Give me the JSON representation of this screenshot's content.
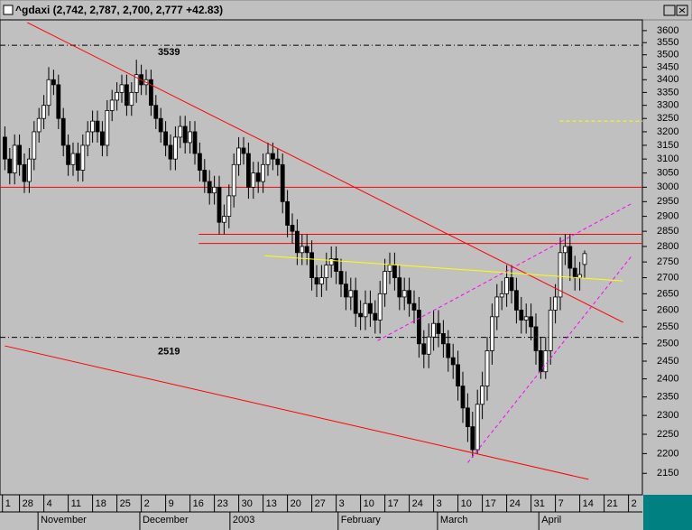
{
  "chart_data": {
    "type": "candlestick",
    "title": "^gdaxi (2,742, 2,787, 2,700, 2,777 +42.83)",
    "log_scale": true,
    "up_color": "#ffffff",
    "down_color": "#000000",
    "open": [
      3180,
      3100,
      3050,
      3150,
      3080,
      3020,
      3100,
      3200,
      3250,
      3300,
      3400,
      3380,
      3250,
      3150,
      3080,
      3120,
      3060,
      3150,
      3200,
      3240,
      3200,
      3150,
      3280,
      3320,
      3350,
      3380,
      3300,
      3350,
      3420,
      3380,
      3400,
      3300,
      3250,
      3200,
      3150,
      3100,
      3180,
      3220,
      3160,
      3200,
      3120,
      3060,
      3020,
      2980,
      3000,
      2880,
      2900,
      2970,
      3080,
      3140,
      3120,
      3000,
      3050,
      3020,
      3080,
      3120,
      3100,
      3080,
      2950,
      2870,
      2850,
      2780,
      2800,
      2780,
      2700,
      2680,
      2700,
      2740,
      2760,
      2720,
      2680,
      2640,
      2660,
      2590,
      2580,
      2620,
      2590,
      2570,
      2650,
      2720,
      2740,
      2700,
      2640,
      2660,
      2620,
      2600,
      2500,
      2470,
      2520,
      2560,
      2530,
      2500,
      2460,
      2440,
      2380,
      2320,
      2270,
      2210,
      2330,
      2380,
      2480,
      2580,
      2640,
      2650,
      2700,
      2660,
      2600,
      2570,
      2580,
      2550,
      2480,
      2420,
      2480,
      2600,
      2640,
      2780,
      2800,
      2730,
      2700,
      2742
    ],
    "high": [
      3220,
      3140,
      3190,
      3190,
      3120,
      3140,
      3240,
      3290,
      3340,
      3450,
      3440,
      3420,
      3290,
      3190,
      3160,
      3160,
      3190,
      3240,
      3280,
      3280,
      3240,
      3320,
      3360,
      3390,
      3420,
      3420,
      3390,
      3480,
      3460,
      3440,
      3440,
      3340,
      3290,
      3240,
      3190,
      3220,
      3260,
      3260,
      3240,
      3240,
      3160,
      3100,
      3060,
      3040,
      3040,
      2940,
      3010,
      3120,
      3180,
      3180,
      3160,
      3090,
      3090,
      3120,
      3160,
      3160,
      3140,
      3120,
      2990,
      2910,
      2890,
      2840,
      2840,
      2820,
      2740,
      2740,
      2780,
      2800,
      2800,
      2760,
      2720,
      2700,
      2700,
      2630,
      2660,
      2660,
      2630,
      2690,
      2760,
      2780,
      2780,
      2740,
      2700,
      2700,
      2660,
      2640,
      2540,
      2560,
      2600,
      2600,
      2570,
      2540,
      2500,
      2480,
      2420,
      2360,
      2310,
      2370,
      2420,
      2520,
      2620,
      2680,
      2690,
      2740,
      2740,
      2700,
      2640,
      2620,
      2620,
      2590,
      2520,
      2520,
      2640,
      2680,
      2830,
      2840,
      2840,
      2770,
      2750,
      2787
    ],
    "low": [
      3060,
      3010,
      3010,
      3040,
      2980,
      2980,
      3060,
      3160,
      3210,
      3260,
      3340,
      3210,
      3110,
      3040,
      3040,
      3020,
      3020,
      3110,
      3160,
      3160,
      3110,
      3110,
      3240,
      3280,
      3310,
      3260,
      3260,
      3310,
      3340,
      3340,
      3260,
      3210,
      3160,
      3110,
      3060,
      3060,
      3140,
      3120,
      3120,
      3080,
      3020,
      2980,
      2940,
      2940,
      2840,
      2840,
      2860,
      2930,
      3040,
      3080,
      2960,
      2960,
      2980,
      2980,
      3040,
      3060,
      3040,
      2910,
      2830,
      2810,
      2740,
      2740,
      2740,
      2660,
      2640,
      2640,
      2660,
      2700,
      2680,
      2640,
      2600,
      2600,
      2550,
      2540,
      2540,
      2550,
      2530,
      2530,
      2610,
      2680,
      2660,
      2600,
      2600,
      2580,
      2560,
      2460,
      2430,
      2430,
      2480,
      2490,
      2460,
      2420,
      2400,
      2340,
      2280,
      2230,
      2190,
      2200,
      2290,
      2340,
      2440,
      2540,
      2600,
      2610,
      2620,
      2560,
      2530,
      2530,
      2510,
      2440,
      2400,
      2400,
      2440,
      2560,
      2600,
      2740,
      2690,
      2660,
      2660,
      2700
    ],
    "close": [
      3100,
      3050,
      3150,
      3080,
      3020,
      3100,
      3200,
      3250,
      3300,
      3400,
      3380,
      3250,
      3150,
      3080,
      3120,
      3060,
      3150,
      3200,
      3240,
      3200,
      3150,
      3280,
      3320,
      3350,
      3380,
      3300,
      3350,
      3420,
      3380,
      3400,
      3300,
      3250,
      3200,
      3150,
      3100,
      3180,
      3220,
      3160,
      3200,
      3120,
      3060,
      3020,
      2980,
      3000,
      2880,
      2900,
      2970,
      3080,
      3140,
      3120,
      3000,
      3050,
      3020,
      3080,
      3120,
      3100,
      3080,
      2950,
      2870,
      2850,
      2780,
      2800,
      2780,
      2700,
      2680,
      2700,
      2740,
      2760,
      2720,
      2680,
      2640,
      2660,
      2590,
      2580,
      2620,
      2590,
      2570,
      2650,
      2720,
      2740,
      2700,
      2640,
      2660,
      2620,
      2600,
      2500,
      2470,
      2520,
      2560,
      2530,
      2500,
      2460,
      2440,
      2380,
      2320,
      2270,
      2210,
      2330,
      2380,
      2480,
      2580,
      2640,
      2650,
      2700,
      2660,
      2600,
      2570,
      2580,
      2550,
      2480,
      2420,
      2480,
      2600,
      2640,
      2780,
      2800,
      2730,
      2700,
      2710,
      2777
    ],
    "xlim": [
      -1,
      131
    ],
    "ylim": [
      2097,
      3653
    ],
    "yticks": [
      3600,
      3550,
      3500,
      3450,
      3400,
      3350,
      3300,
      3250,
      3200,
      3150,
      3100,
      3050,
      3000,
      2950,
      2900,
      2850,
      2800,
      2750,
      2700,
      2650,
      2600,
      2550,
      2500,
      2450,
      2400,
      2350,
      2300,
      2250,
      2200,
      2150
    ],
    "xticks": [
      {
        "value": -0.5,
        "label": "1"
      },
      {
        "value": 3,
        "label": "28"
      },
      {
        "value": 8,
        "label": "4"
      },
      {
        "value": 13,
        "label": "11"
      },
      {
        "value": 18,
        "label": "18"
      },
      {
        "value": 23,
        "label": "25"
      },
      {
        "value": 28,
        "label": "2"
      },
      {
        "value": 33,
        "label": "9"
      },
      {
        "value": 38,
        "label": "16"
      },
      {
        "value": 43,
        "label": "23"
      },
      {
        "value": 48,
        "label": "30"
      },
      {
        "value": 53,
        "label": "13"
      },
      {
        "value": 58,
        "label": "20"
      },
      {
        "value": 63,
        "label": "27"
      },
      {
        "value": 68,
        "label": "3"
      },
      {
        "value": 73,
        "label": "10"
      },
      {
        "value": 78,
        "label": "17"
      },
      {
        "value": 83,
        "label": "24"
      },
      {
        "value": 88,
        "label": "3"
      },
      {
        "value": 93,
        "label": "10"
      },
      {
        "value": 98,
        "label": "17"
      },
      {
        "value": 103,
        "label": "24"
      },
      {
        "value": 108,
        "label": "31"
      },
      {
        "value": 113,
        "label": "7"
      },
      {
        "value": 118,
        "label": "14"
      },
      {
        "value": 123,
        "label": "21"
      },
      {
        "value": 128,
        "label": "2"
      }
    ],
    "months": [
      {
        "value": 6.8,
        "label": "November"
      },
      {
        "value": 27.7,
        "label": "December"
      },
      {
        "value": 46.2,
        "label": "2003"
      },
      {
        "value": 68.4,
        "label": "February"
      },
      {
        "value": 88.8,
        "label": "March"
      },
      {
        "value": 109.6,
        "label": "April"
      }
    ],
    "hlines": [
      {
        "value": 3539,
        "color": "#000000",
        "dashed": true,
        "label": "3539"
      },
      {
        "value": 2519,
        "color": "#000000",
        "dashed": true,
        "label": "2519"
      },
      {
        "value": 3000,
        "color": "#ff0000"
      },
      {
        "value": 2840,
        "color": "#ff0000",
        "from": 39.8
      },
      {
        "value": 2810,
        "color": "#ff0000",
        "from": 39.8
      }
    ],
    "trendlines": [
      {
        "color": "#ff0000",
        "from": [
          4.6,
          3634
        ],
        "to": [
          126.9,
          2563
        ]
      },
      {
        "color": "#ff0000",
        "from": [
          0,
          2494
        ],
        "to": [
          119.8,
          2135
        ]
      },
      {
        "color": "#ff00ff",
        "dashed": true,
        "from": [
          76.5,
          2509
        ],
        "to": [
          128.7,
          2944
        ]
      },
      {
        "color": "#ff00ff",
        "dashed": true,
        "from": [
          95,
          2177
        ],
        "to": [
          128.7,
          2770
        ]
      },
      {
        "color": "#ffff00",
        "from": [
          53.3,
          2770
        ],
        "to": [
          126.9,
          2690
        ]
      },
      {
        "color": "#ffff00",
        "dashed": true,
        "from": [
          113.9,
          3240
        ],
        "to": [
          130.9,
          3240
        ]
      }
    ]
  }
}
